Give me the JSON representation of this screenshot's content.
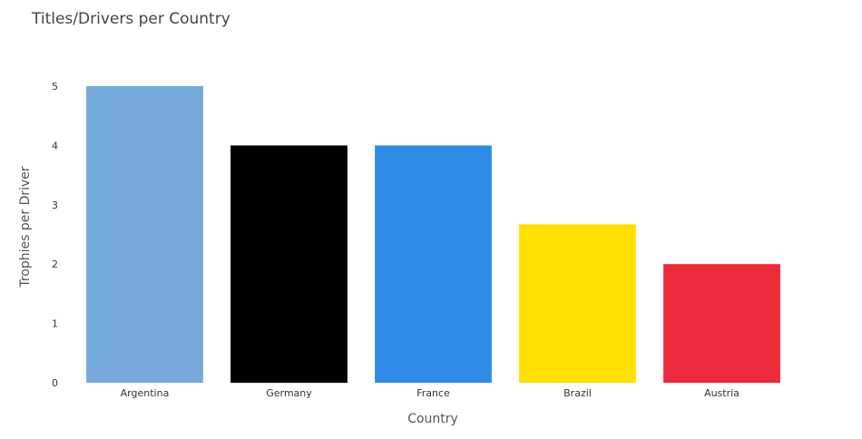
{
  "chart_data": {
    "type": "bar",
    "title": "Titles/Drivers per Country",
    "xlabel": "Country",
    "ylabel": "Trophies per Driver",
    "categories": [
      "Argentina",
      "Germany",
      "France",
      "Brazil",
      "Austria"
    ],
    "values": [
      5,
      4,
      4,
      2.67,
      2
    ],
    "colors": [
      "#75A9DC",
      "#000000",
      "#2F8BE5",
      "#FFE000",
      "#EC2A3C"
    ],
    "ylim": [
      0,
      5
    ],
    "yticks": [
      "0",
      "1",
      "2",
      "3",
      "4",
      "5"
    ],
    "grid": false,
    "legend": "none"
  }
}
